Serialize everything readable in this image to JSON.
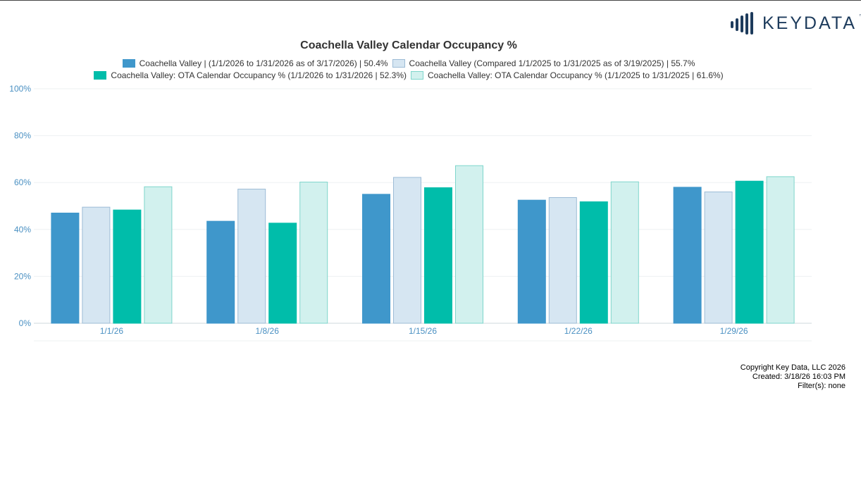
{
  "brand": {
    "name": "KEYDATA",
    "tm": "™",
    "color": "#1d3b5c"
  },
  "chart_data": {
    "type": "bar",
    "title": "Coachella Valley Calendar Occupancy %",
    "categories": [
      "1/1/26",
      "1/8/26",
      "1/15/26",
      "1/22/26",
      "1/29/26"
    ],
    "series": [
      {
        "name": "Coachella Valley | (1/1/2026 to 1/31/2026 as of 3/17/2026) | 50.4%",
        "values": [
          47,
          43.5,
          55,
          52.5,
          58
        ],
        "color": "#3f97cb",
        "border": "#3f97cb"
      },
      {
        "name": "Coachella Valley (Compared 1/1/2025 to 1/31/2025 as of 3/19/2025) | 55.7%",
        "values": [
          49.5,
          57.2,
          62.2,
          53.6,
          56
        ],
        "color": "#d6e6f2",
        "border": "#9dbcd6"
      },
      {
        "name": "Coachella Valley: OTA Calendar Occupancy % (1/1/2026 to 1/31/2026 | 52.3%)",
        "values": [
          48.3,
          42.7,
          57.8,
          51.8,
          60.6
        ],
        "color": "#00bdaa",
        "border": "#00bdaa"
      },
      {
        "name": "Coachella Valley: OTA Calendar Occupancy % (1/1/2025 to 1/31/2025 | 61.6%)",
        "values": [
          58.2,
          60.2,
          67.2,
          60.3,
          62.5
        ],
        "color": "#d2f1ee",
        "border": "#7fd6cc"
      }
    ],
    "yticks": [
      "0%",
      "20%",
      "40%",
      "60%",
      "80%",
      "100%"
    ],
    "ylim": [
      0,
      100
    ],
    "xlabel": "",
    "ylabel": "",
    "grid": true,
    "legend": "top-center"
  },
  "footer": {
    "copyright": "Copyright Key Data, LLC 2026",
    "created": "Created: 3/18/26 16:03 PM",
    "filters": "Filter(s): none"
  }
}
